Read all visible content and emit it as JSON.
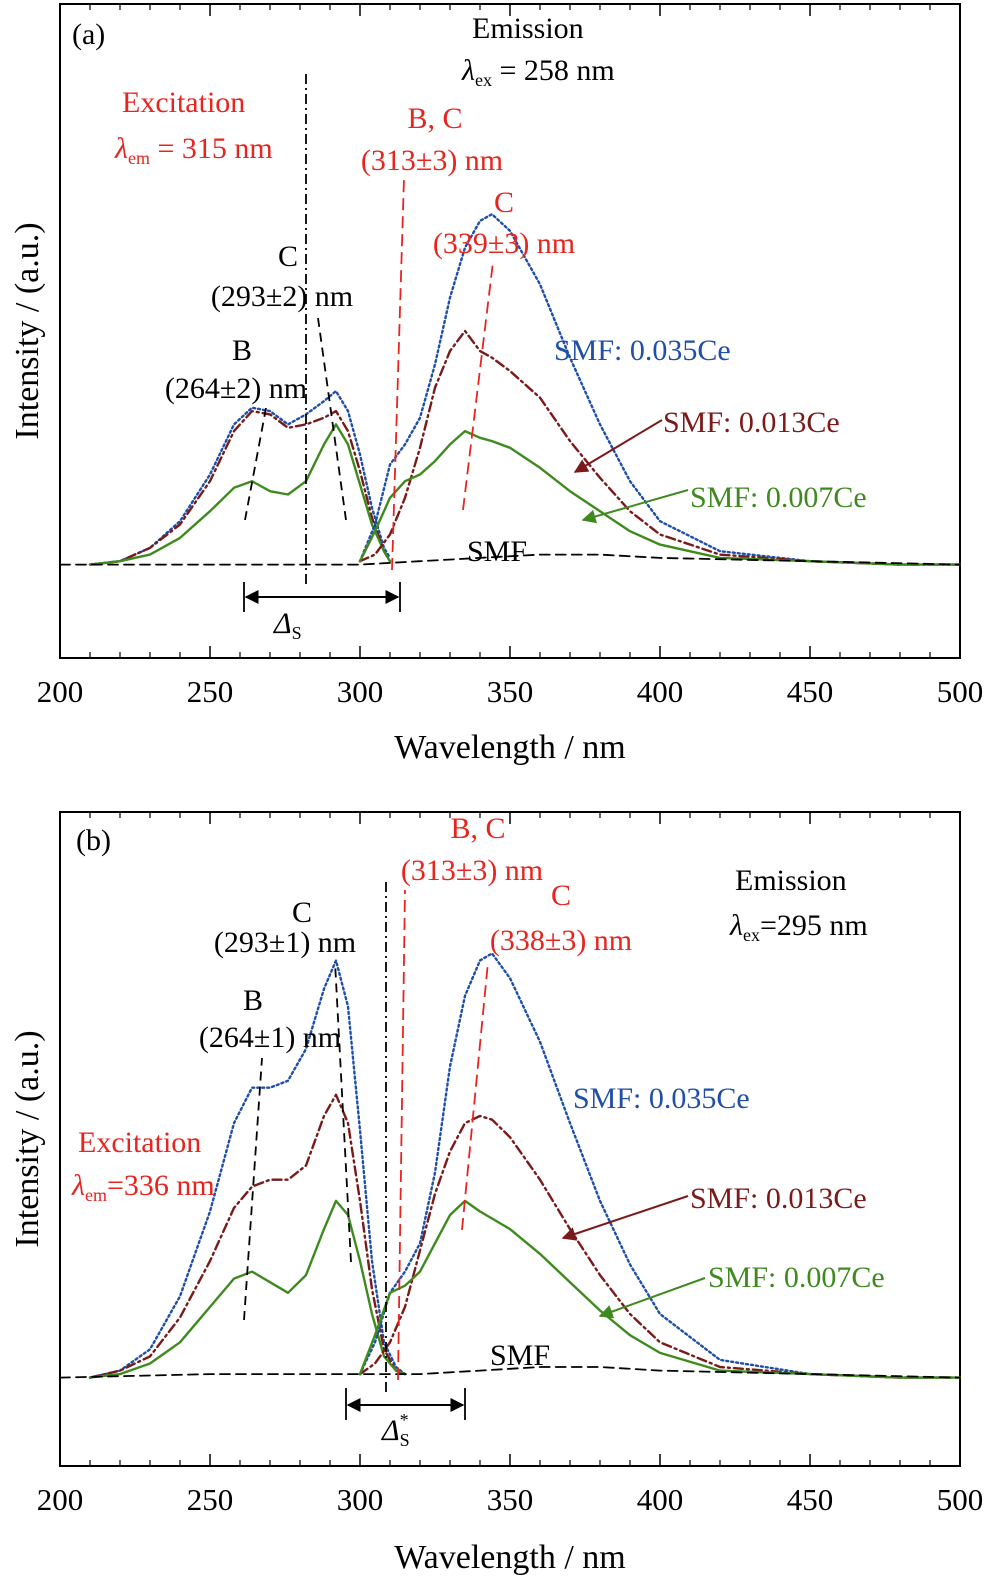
{
  "chart_data": [
    {
      "panel": "(a)",
      "type": "line",
      "xlabel": "Wavelength / nm",
      "ylabel": "Intensity / (a.u.)",
      "xlim": [
        200,
        500
      ],
      "ylim": [
        -0.28,
        1.68
      ],
      "xticks": [
        "200",
        "250",
        "300",
        "350",
        "400",
        "450",
        "500"
      ],
      "series": [
        {
          "name": "SMF: 0.035Ce",
          "color": "#1f4fa8",
          "dash": "dot",
          "group": "excitation",
          "x": [
            210,
            220,
            230,
            240,
            250,
            258,
            264,
            270,
            276,
            282,
            288,
            292,
            296,
            300,
            304,
            308,
            310
          ],
          "y": [
            0,
            0.01,
            0.05,
            0.13,
            0.27,
            0.42,
            0.47,
            0.46,
            0.42,
            0.45,
            0.49,
            0.52,
            0.46,
            0.33,
            0.17,
            0.05,
            0.02
          ]
        },
        {
          "name": "SMF: 0.013Ce",
          "color": "#7a1a1a",
          "dash": "dashdot",
          "group": "excitation",
          "x": [
            210,
            220,
            230,
            240,
            250,
            258,
            264,
            270,
            276,
            282,
            288,
            292,
            296,
            300,
            304,
            308,
            310
          ],
          "y": [
            0,
            0.01,
            0.05,
            0.12,
            0.25,
            0.4,
            0.46,
            0.45,
            0.41,
            0.42,
            0.44,
            0.46,
            0.4,
            0.28,
            0.14,
            0.04,
            0.01
          ]
        },
        {
          "name": "SMF: 0.007Ce",
          "color": "#3f8a1f",
          "dash": "solid",
          "group": "excitation",
          "x": [
            210,
            220,
            230,
            240,
            250,
            258,
            264,
            270,
            276,
            282,
            288,
            292,
            296,
            300,
            304,
            308,
            310
          ],
          "y": [
            0,
            0.01,
            0.03,
            0.08,
            0.16,
            0.23,
            0.25,
            0.22,
            0.21,
            0.25,
            0.36,
            0.42,
            0.36,
            0.24,
            0.12,
            0.04,
            0.01
          ]
        },
        {
          "name": "SMF: 0.035Ce",
          "color": "#1f4fa8",
          "dash": "dot",
          "group": "emission",
          "x": [
            300,
            305,
            310,
            315,
            320,
            325,
            330,
            335,
            340,
            344,
            350,
            360,
            370,
            380,
            390,
            400,
            420,
            450,
            480,
            500
          ],
          "y": [
            0.01,
            0.12,
            0.3,
            0.36,
            0.44,
            0.6,
            0.8,
            0.95,
            1.03,
            1.05,
            1.0,
            0.84,
            0.62,
            0.42,
            0.25,
            0.13,
            0.04,
            0.01,
            0,
            0
          ]
        },
        {
          "name": "SMF: 0.013Ce",
          "color": "#7a1a1a",
          "dash": "dashdot",
          "group": "emission",
          "x": [
            300,
            305,
            310,
            315,
            320,
            325,
            330,
            335,
            340,
            344,
            350,
            360,
            370,
            380,
            390,
            400,
            420,
            450,
            480,
            500
          ],
          "y": [
            0.01,
            0.03,
            0.09,
            0.2,
            0.35,
            0.53,
            0.64,
            0.7,
            0.64,
            0.62,
            0.58,
            0.5,
            0.37,
            0.26,
            0.16,
            0.09,
            0.03,
            0.01,
            0,
            0
          ]
        },
        {
          "name": "SMF: 0.007Ce",
          "color": "#3f8a1f",
          "dash": "solid",
          "group": "emission",
          "x": [
            300,
            305,
            310,
            315,
            320,
            325,
            330,
            335,
            340,
            344,
            350,
            360,
            370,
            380,
            390,
            400,
            420,
            450,
            480,
            500
          ],
          "y": [
            0.01,
            0.1,
            0.2,
            0.25,
            0.27,
            0.31,
            0.36,
            0.4,
            0.38,
            0.37,
            0.35,
            0.29,
            0.22,
            0.16,
            0.1,
            0.06,
            0.02,
            0.01,
            0,
            0
          ]
        },
        {
          "name": "SMF",
          "color": "#000000",
          "dash": "dashdash",
          "group": "baseline",
          "x": [
            200,
            250,
            300,
            320,
            340,
            360,
            380,
            400,
            450,
            500
          ],
          "y": [
            0,
            0,
            0,
            0.01,
            0.02,
            0.03,
            0.03,
            0.02,
            0.01,
            0
          ]
        }
      ],
      "annotations": {
        "panel_label": "(a)",
        "emission_title": "Emission",
        "emission_lambda_sym": "λ",
        "emission_lambda_sub": "ex",
        "emission_lambda_val": " = 258 nm",
        "excitation_title": "Excitation",
        "excitation_lambda_sym": "λ",
        "excitation_lambda_sub": "em",
        "excitation_lambda_val": " = 315 nm",
        "peak_bc_red_label": "B, C",
        "peak_bc_red_value": "(313±3) nm",
        "peak_c_red_label": "C",
        "peak_c_red_value": "(339±3) nm",
        "peak_c_black_label": "C",
        "peak_c_black_value": "(293±2) nm",
        "peak_b_black_label": "B",
        "peak_b_black_value": "(264±2) nm",
        "legend_035": "SMF: 0.035Ce",
        "legend_013": "SMF: 0.013Ce",
        "legend_007": "SMF: 0.007Ce",
        "legend_smf": "SMF",
        "delta_sym": "Δ",
        "delta_sub": "S",
        "delta_sup": ""
      }
    },
    {
      "panel": "(b)",
      "type": "line",
      "xlabel": "Wavelength / nm",
      "ylabel": "Intensity / (a.u.)",
      "xlim": [
        200,
        500
      ],
      "ylim": [
        -0.25,
        1.6
      ],
      "xticks": [
        "200",
        "250",
        "300",
        "350",
        "400",
        "450",
        "500"
      ],
      "series": [
        {
          "name": "SMF: 0.035Ce",
          "color": "#1f4fa8",
          "dash": "dot",
          "group": "excitation",
          "x": [
            210,
            220,
            230,
            240,
            250,
            258,
            264,
            270,
            276,
            282,
            288,
            292,
            296,
            300,
            304,
            308,
            312,
            315
          ],
          "y": [
            0,
            0.02,
            0.08,
            0.23,
            0.47,
            0.72,
            0.82,
            0.82,
            0.84,
            0.93,
            1.1,
            1.18,
            1.05,
            0.7,
            0.33,
            0.1,
            0.03,
            0.01
          ]
        },
        {
          "name": "SMF: 0.013Ce",
          "color": "#7a1a1a",
          "dash": "dashdot",
          "group": "excitation",
          "x": [
            210,
            220,
            230,
            240,
            250,
            258,
            264,
            270,
            276,
            282,
            288,
            292,
            296,
            300,
            304,
            308,
            312,
            315
          ],
          "y": [
            0,
            0.02,
            0.06,
            0.17,
            0.33,
            0.48,
            0.54,
            0.56,
            0.56,
            0.6,
            0.74,
            0.8,
            0.72,
            0.5,
            0.25,
            0.08,
            0.02,
            0.01
          ]
        },
        {
          "name": "SMF: 0.007Ce",
          "color": "#3f8a1f",
          "dash": "solid",
          "group": "excitation",
          "x": [
            210,
            220,
            230,
            240,
            250,
            258,
            264,
            270,
            276,
            282,
            288,
            292,
            296,
            300,
            304,
            308,
            312,
            315
          ],
          "y": [
            0,
            0.01,
            0.04,
            0.1,
            0.2,
            0.28,
            0.3,
            0.27,
            0.24,
            0.29,
            0.42,
            0.5,
            0.46,
            0.33,
            0.18,
            0.06,
            0.02,
            0.01
          ]
        },
        {
          "name": "SMF: 0.035Ce",
          "color": "#1f4fa8",
          "dash": "dot",
          "group": "emission",
          "x": [
            300,
            305,
            310,
            315,
            320,
            325,
            330,
            335,
            340,
            344,
            350,
            360,
            370,
            380,
            390,
            400,
            420,
            450,
            480,
            500
          ],
          "y": [
            0.01,
            0.1,
            0.24,
            0.3,
            0.38,
            0.58,
            0.88,
            1.08,
            1.18,
            1.2,
            1.13,
            0.95,
            0.72,
            0.5,
            0.32,
            0.18,
            0.05,
            0.01,
            0,
            0
          ]
        },
        {
          "name": "SMF: 0.013Ce",
          "color": "#7a1a1a",
          "dash": "dashdot",
          "group": "emission",
          "x": [
            300,
            305,
            310,
            315,
            320,
            325,
            330,
            335,
            340,
            344,
            350,
            360,
            370,
            380,
            390,
            400,
            420,
            450,
            480,
            500
          ],
          "y": [
            0.01,
            0.04,
            0.1,
            0.2,
            0.36,
            0.52,
            0.64,
            0.72,
            0.74,
            0.73,
            0.68,
            0.56,
            0.42,
            0.29,
            0.18,
            0.1,
            0.03,
            0.01,
            0,
            0
          ]
        },
        {
          "name": "SMF: 0.007Ce",
          "color": "#3f8a1f",
          "dash": "solid",
          "group": "emission",
          "x": [
            300,
            305,
            310,
            315,
            320,
            325,
            330,
            335,
            340,
            344,
            350,
            360,
            370,
            380,
            390,
            400,
            420,
            450,
            480,
            500
          ],
          "y": [
            0.01,
            0.12,
            0.24,
            0.26,
            0.3,
            0.38,
            0.46,
            0.5,
            0.47,
            0.45,
            0.42,
            0.35,
            0.27,
            0.19,
            0.12,
            0.07,
            0.02,
            0.01,
            0,
            0
          ]
        },
        {
          "name": "SMF",
          "color": "#000000",
          "dash": "dashdash",
          "group": "baseline",
          "x": [
            200,
            250,
            300,
            320,
            340,
            360,
            380,
            400,
            450,
            500
          ],
          "y": [
            0,
            0.01,
            0.01,
            0.01,
            0.02,
            0.03,
            0.03,
            0.02,
            0.01,
            0
          ]
        }
      ],
      "annotations": {
        "panel_label": "(b)",
        "emission_title": "Emission",
        "emission_lambda_sym": "λ",
        "emission_lambda_sub": "ex",
        "emission_lambda_val": "=295 nm",
        "excitation_title": "Excitation",
        "excitation_lambda_sym": "λ",
        "excitation_lambda_sub": "em",
        "excitation_lambda_val": "=336 nm",
        "peak_bc_red_label": "B, C",
        "peak_bc_red_value": "(313±3) nm",
        "peak_c_red_label": "C",
        "peak_c_red_value": "(338±3) nm",
        "peak_c_black_label": "C",
        "peak_c_black_value": "(293±1) nm",
        "peak_b_black_label": "B",
        "peak_b_black_value": "(264±1) nm",
        "legend_035": "SMF: 0.035Ce",
        "legend_013": "SMF: 0.013Ce",
        "legend_007": "SMF: 0.007Ce",
        "legend_smf": "SMF",
        "delta_sym": "Δ",
        "delta_sub": "S",
        "delta_sup": "*"
      }
    }
  ]
}
